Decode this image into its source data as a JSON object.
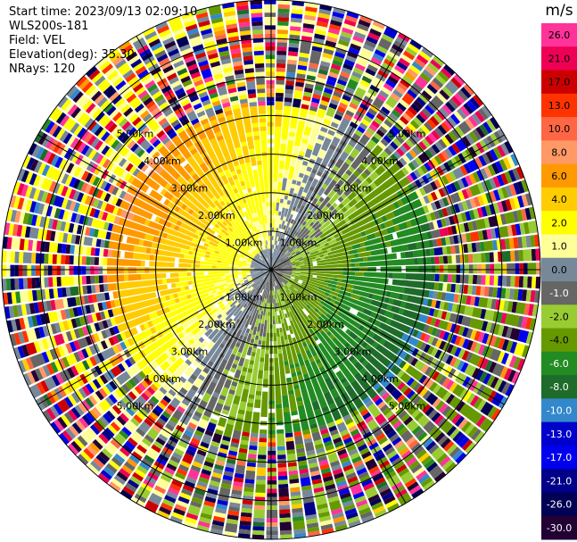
{
  "header": {
    "start_time": "Start time: 2023/09/13 02:09:10",
    "instrument": "WLS200s-181",
    "field": "Field: VEL",
    "elevation": "Elevation(deg): 35.30",
    "nrays": "NRays: 120"
  },
  "chart_data": {
    "type": "ppi",
    "field": "VEL",
    "units": "m/s",
    "n_rays": 120,
    "elevation_deg": 35.3,
    "max_range_km": 7.0,
    "range_ring_labels": [
      "1.00km",
      "2.00km",
      "3.00km",
      "4.00km",
      "5.00km"
    ],
    "range_rings_km": [
      1,
      2,
      3,
      4,
      5
    ],
    "colorbar": {
      "unit_label": "m/s",
      "tick_labels": [
        "26.0",
        "21.0",
        "17.0",
        "13.0",
        "10.0",
        "8.0",
        "6.0",
        "4.0",
        "2.0",
        "1.0",
        "0.0",
        "-1.0",
        "-2.0",
        "-4.0",
        "-6.0",
        "-8.0",
        "-10.0",
        "-13.0",
        "-17.0",
        "-21.0",
        "-26.0",
        "-30.0"
      ],
      "colors": [
        "#ff3399",
        "#ee0055",
        "#cc0000",
        "#ff3300",
        "#ff6644",
        "#ff9966",
        "#ff9900",
        "#ffcc00",
        "#ffff00",
        "#ffff99",
        "#778899",
        "#666666",
        "#99cc33",
        "#669900",
        "#228B22",
        "#1e6b2a",
        "#3388cc",
        "#0000cc",
        "#0000ee",
        "#000088",
        "#000055",
        "#220033"
      ]
    }
  }
}
